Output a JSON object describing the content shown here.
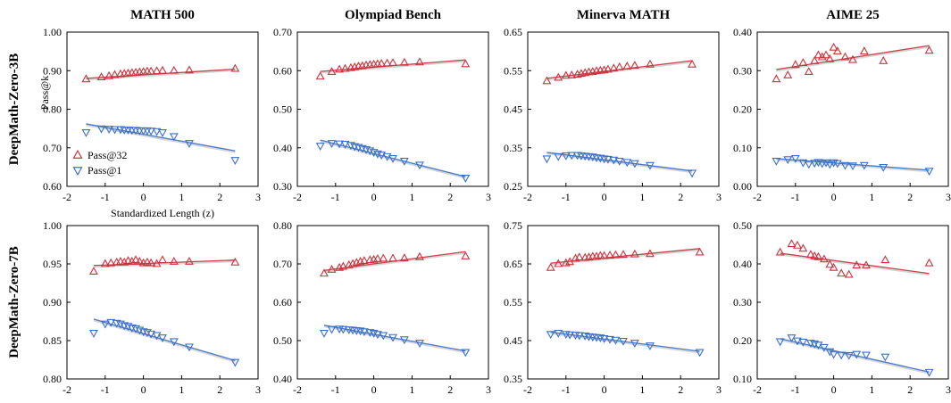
{
  "colors": {
    "pass32": "#d0303c",
    "pass1": "#3a6fc8",
    "pass32_fit": "#c8404a",
    "pass1_fit": "#4878c8"
  },
  "columns": [
    "MATH 500",
    "Olympiad Bench",
    "Minerva MATH",
    "AIME 25"
  ],
  "rows": [
    "DeepMath-Zero-3B",
    "DeepMath-Zero-7B"
  ],
  "legend": {
    "pass32": "Pass@32",
    "pass1": "Pass@1"
  },
  "ylabel": "Pass@k",
  "xlabel": "Standardized Length (z)",
  "chart_data": [
    {
      "type": "scatter",
      "row": "DeepMath-Zero-3B",
      "title": "MATH 500",
      "xlim": [
        -2,
        3
      ],
      "xticks": [
        "-2",
        "-1",
        "0",
        "1",
        "2",
        "3"
      ],
      "ylim": [
        0.6,
        1.0
      ],
      "yticks": [
        "0.60",
        "0.70",
        "0.80",
        "0.90",
        "1.00"
      ],
      "series": [
        {
          "name": "Pass@32",
          "marker": "triangle-up",
          "x": [
            -1.5,
            -1.1,
            -0.9,
            -0.75,
            -0.6,
            -0.5,
            -0.4,
            -0.3,
            -0.2,
            -0.1,
            0,
            0.1,
            0.2,
            0.35,
            0.5,
            0.8,
            1.2,
            2.4
          ],
          "y": [
            0.878,
            0.883,
            0.886,
            0.889,
            0.891,
            0.892,
            0.893,
            0.894,
            0.895,
            0.896,
            0.897,
            0.898,
            0.898,
            0.899,
            0.9,
            0.9,
            0.901,
            0.905
          ],
          "fit": [
            0.88,
            0.904
          ]
        },
        {
          "name": "Pass@1",
          "marker": "triangle-down",
          "x": [
            -1.5,
            -1.1,
            -0.9,
            -0.75,
            -0.6,
            -0.5,
            -0.4,
            -0.3,
            -0.2,
            -0.1,
            0,
            0.1,
            0.2,
            0.35,
            0.5,
            0.8,
            1.2,
            2.4
          ],
          "y": [
            0.74,
            0.75,
            0.749,
            0.748,
            0.748,
            0.747,
            0.747,
            0.746,
            0.746,
            0.745,
            0.745,
            0.745,
            0.744,
            0.743,
            0.74,
            0.73,
            0.712,
            0.668
          ],
          "fit": [
            0.762,
            0.692
          ]
        }
      ]
    },
    {
      "type": "scatter",
      "row": "DeepMath-Zero-3B",
      "title": "Olympiad Bench",
      "xlim": [
        -2,
        3
      ],
      "xticks": [
        "-2",
        "-1",
        "0",
        "1",
        "2",
        "3"
      ],
      "ylim": [
        0.3,
        0.7
      ],
      "yticks": [
        "0.30",
        "0.40",
        "0.50",
        "0.60",
        "0.70"
      ],
      "series": [
        {
          "name": "Pass@32",
          "marker": "triangle-up",
          "x": [
            -1.4,
            -1.1,
            -0.9,
            -0.75,
            -0.6,
            -0.5,
            -0.4,
            -0.3,
            -0.2,
            -0.1,
            0,
            0.1,
            0.2,
            0.35,
            0.5,
            0.8,
            1.2,
            2.4
          ],
          "y": [
            0.585,
            0.597,
            0.603,
            0.605,
            0.607,
            0.609,
            0.611,
            0.612,
            0.614,
            0.615,
            0.616,
            0.617,
            0.618,
            0.619,
            0.62,
            0.621,
            0.622,
            0.617
          ],
          "fit": [
            0.598,
            0.628
          ]
        },
        {
          "name": "Pass@1",
          "marker": "triangle-down",
          "x": [
            -1.4,
            -1.1,
            -0.9,
            -0.75,
            -0.6,
            -0.5,
            -0.4,
            -0.3,
            -0.2,
            -0.1,
            0,
            0.1,
            0.2,
            0.35,
            0.5,
            0.8,
            1.2,
            2.4
          ],
          "y": [
            0.405,
            0.412,
            0.411,
            0.41,
            0.407,
            0.404,
            0.402,
            0.399,
            0.396,
            0.393,
            0.389,
            0.385,
            0.382,
            0.378,
            0.373,
            0.366,
            0.356,
            0.322
          ],
          "fit": [
            0.42,
            0.325
          ]
        }
      ]
    },
    {
      "type": "scatter",
      "row": "DeepMath-Zero-3B",
      "title": "Minerva MATH",
      "xlim": [
        -2,
        3
      ],
      "xticks": [
        "-2",
        "-1",
        "0",
        "1",
        "2",
        "3"
      ],
      "ylim": [
        0.25,
        0.65
      ],
      "yticks": [
        "0.25",
        "0.35",
        "0.45",
        "0.55",
        "0.65"
      ],
      "series": [
        {
          "name": "Pass@32",
          "marker": "triangle-up",
          "x": [
            -1.5,
            -1.2,
            -1.0,
            -0.85,
            -0.7,
            -0.6,
            -0.5,
            -0.4,
            -0.3,
            -0.2,
            -0.1,
            0,
            0.1,
            0.25,
            0.4,
            0.6,
            0.8,
            1.2,
            2.3
          ],
          "y": [
            0.523,
            0.532,
            0.537,
            0.538,
            0.54,
            0.542,
            0.544,
            0.546,
            0.547,
            0.549,
            0.55,
            0.551,
            0.553,
            0.556,
            0.559,
            0.561,
            0.563,
            0.566,
            0.566
          ],
          "fit": [
            0.53,
            0.576
          ]
        },
        {
          "name": "Pass@1",
          "marker": "triangle-down",
          "x": [
            -1.5,
            -1.2,
            -1.0,
            -0.85,
            -0.7,
            -0.6,
            -0.5,
            -0.4,
            -0.3,
            -0.2,
            -0.1,
            0,
            0.1,
            0.25,
            0.4,
            0.6,
            0.8,
            1.2,
            2.3
          ],
          "y": [
            0.322,
            0.328,
            0.33,
            0.331,
            0.331,
            0.33,
            0.329,
            0.328,
            0.327,
            0.325,
            0.324,
            0.322,
            0.321,
            0.319,
            0.316,
            0.313,
            0.31,
            0.305,
            0.285
          ],
          "fit": [
            0.338,
            0.29
          ]
        }
      ]
    },
    {
      "type": "scatter",
      "row": "DeepMath-Zero-3B",
      "title": "AIME 25",
      "xlim": [
        -2,
        3
      ],
      "xticks": [
        "-2",
        "-1",
        "0",
        "1",
        "2",
        "3"
      ],
      "ylim": [
        0.0,
        0.4
      ],
      "yticks": [
        "0.00",
        "0.10",
        "0.20",
        "0.30",
        "0.40"
      ],
      "series": [
        {
          "name": "Pass@32",
          "marker": "triangle-up",
          "x": [
            -1.5,
            -1.2,
            -1.0,
            -0.8,
            -0.65,
            -0.5,
            -0.4,
            -0.3,
            -0.2,
            -0.1,
            0,
            0.1,
            0.3,
            0.5,
            0.8,
            1.3,
            2.5
          ],
          "y": [
            0.278,
            0.288,
            0.315,
            0.32,
            0.297,
            0.325,
            0.34,
            0.335,
            0.34,
            0.33,
            0.36,
            0.35,
            0.335,
            0.328,
            0.35,
            0.325,
            0.352
          ],
          "fit": [
            0.303,
            0.365
          ]
        },
        {
          "name": "Pass@1",
          "marker": "triangle-down",
          "x": [
            -1.5,
            -1.2,
            -1.0,
            -0.8,
            -0.65,
            -0.5,
            -0.4,
            -0.3,
            -0.2,
            -0.1,
            0,
            0.1,
            0.3,
            0.5,
            0.8,
            1.3,
            2.5
          ],
          "y": [
            0.066,
            0.07,
            0.073,
            0.062,
            0.058,
            0.061,
            0.063,
            0.06,
            0.062,
            0.058,
            0.062,
            0.06,
            0.055,
            0.054,
            0.055,
            0.05,
            0.04
          ],
          "fit": [
            0.072,
            0.042
          ]
        }
      ]
    },
    {
      "type": "scatter",
      "row": "DeepMath-Zero-7B",
      "title": "MATH 500",
      "xlim": [
        -2,
        3
      ],
      "xticks": [
        "-2",
        "-1",
        "0",
        "1",
        "2",
        "3"
      ],
      "ylim": [
        0.8,
        1.0
      ],
      "yticks": [
        "0.80",
        "0.85",
        "0.90",
        "0.95",
        "1.00"
      ],
      "series": [
        {
          "name": "Pass@32",
          "marker": "triangle-up",
          "x": [
            -1.3,
            -1.0,
            -0.85,
            -0.7,
            -0.6,
            -0.5,
            -0.4,
            -0.3,
            -0.2,
            -0.1,
            0,
            0.1,
            0.2,
            0.35,
            0.5,
            0.8,
            1.2,
            2.4
          ],
          "y": [
            0.94,
            0.95,
            0.951,
            0.952,
            0.953,
            0.952,
            0.954,
            0.953,
            0.955,
            0.953,
            0.951,
            0.952,
            0.951,
            0.95,
            0.955,
            0.953,
            0.953,
            0.952
          ],
          "fit": [
            0.948,
            0.955
          ]
        },
        {
          "name": "Pass@1",
          "marker": "triangle-down",
          "x": [
            -1.3,
            -1.0,
            -0.85,
            -0.7,
            -0.6,
            -0.5,
            -0.4,
            -0.3,
            -0.2,
            -0.1,
            0,
            0.1,
            0.2,
            0.35,
            0.5,
            0.8,
            1.2,
            2.4
          ],
          "y": [
            0.86,
            0.872,
            0.874,
            0.873,
            0.872,
            0.87,
            0.869,
            0.867,
            0.866,
            0.864,
            0.862,
            0.861,
            0.859,
            0.857,
            0.854,
            0.849,
            0.842,
            0.822
          ],
          "fit": [
            0.878,
            0.824
          ]
        }
      ]
    },
    {
      "type": "scatter",
      "row": "DeepMath-Zero-7B",
      "title": "Olympiad Bench",
      "xlim": [
        -2,
        3
      ],
      "xticks": [
        "-2",
        "-1",
        "0",
        "1",
        "2",
        "3"
      ],
      "ylim": [
        0.4,
        0.8
      ],
      "yticks": [
        "0.40",
        "0.50",
        "0.60",
        "0.70",
        "0.80"
      ],
      "series": [
        {
          "name": "Pass@32",
          "marker": "triangle-up",
          "x": [
            -1.3,
            -1.1,
            -0.9,
            -0.8,
            -0.65,
            -0.55,
            -0.45,
            -0.35,
            -0.25,
            -0.1,
            0,
            0.1,
            0.25,
            0.5,
            0.8,
            1.2,
            2.4
          ],
          "y": [
            0.675,
            0.685,
            0.69,
            0.693,
            0.697,
            0.7,
            0.703,
            0.706,
            0.708,
            0.71,
            0.711,
            0.713,
            0.714,
            0.714,
            0.715,
            0.718,
            0.72
          ],
          "fit": [
            0.683,
            0.732
          ]
        },
        {
          "name": "Pass@1",
          "marker": "triangle-down",
          "x": [
            -1.3,
            -1.1,
            -0.9,
            -0.8,
            -0.65,
            -0.55,
            -0.45,
            -0.35,
            -0.25,
            -0.1,
            0,
            0.1,
            0.25,
            0.5,
            0.8,
            1.2,
            2.4
          ],
          "y": [
            0.52,
            0.53,
            0.531,
            0.53,
            0.529,
            0.528,
            0.527,
            0.526,
            0.524,
            0.522,
            0.52,
            0.517,
            0.514,
            0.509,
            0.503,
            0.494,
            0.47
          ],
          "fit": [
            0.54,
            0.473
          ]
        }
      ]
    },
    {
      "type": "scatter",
      "row": "DeepMath-Zero-7B",
      "title": "Minerva MATH",
      "xlim": [
        -2,
        3
      ],
      "xticks": [
        "-2",
        "-1",
        "0",
        "1",
        "2",
        "3"
      ],
      "ylim": [
        0.35,
        0.75
      ],
      "yticks": [
        "0.35",
        "0.45",
        "0.55",
        "0.65",
        "0.75"
      ],
      "series": [
        {
          "name": "Pass@32",
          "marker": "triangle-up",
          "x": [
            -1.4,
            -1.2,
            -1.0,
            -0.9,
            -0.75,
            -0.65,
            -0.5,
            -0.4,
            -0.3,
            -0.2,
            -0.1,
            0,
            0.15,
            0.3,
            0.5,
            0.8,
            1.2,
            2.5
          ],
          "y": [
            0.64,
            0.65,
            0.652,
            0.655,
            0.664,
            0.667,
            0.666,
            0.667,
            0.669,
            0.669,
            0.671,
            0.671,
            0.672,
            0.673,
            0.674,
            0.675,
            0.676,
            0.68
          ],
          "fit": [
            0.652,
            0.69
          ]
        },
        {
          "name": "Pass@1",
          "marker": "triangle-down",
          "x": [
            -1.4,
            -1.2,
            -1.0,
            -0.9,
            -0.75,
            -0.65,
            -0.5,
            -0.4,
            -0.3,
            -0.2,
            -0.1,
            0,
            0.15,
            0.3,
            0.5,
            0.8,
            1.2,
            2.5
          ],
          "y": [
            0.467,
            0.47,
            0.467,
            0.466,
            0.465,
            0.464,
            0.463,
            0.461,
            0.46,
            0.459,
            0.458,
            0.456,
            0.454,
            0.452,
            0.449,
            0.444,
            0.437,
            0.42
          ],
          "fit": [
            0.472,
            0.422
          ]
        }
      ]
    },
    {
      "type": "scatter",
      "row": "DeepMath-Zero-7B",
      "title": "AIME 25",
      "xlim": [
        -2,
        3
      ],
      "xticks": [
        "-2",
        "-1",
        "0",
        "1",
        "2",
        "3"
      ],
      "ylim": [
        0.1,
        0.5
      ],
      "yticks": [
        "0.10",
        "0.20",
        "0.30",
        "0.40",
        "0.50"
      ],
      "series": [
        {
          "name": "Pass@32",
          "marker": "triangle-up",
          "x": [
            -1.4,
            -1.1,
            -0.95,
            -0.8,
            -0.6,
            -0.5,
            -0.4,
            -0.25,
            -0.1,
            0,
            0.2,
            0.4,
            0.6,
            0.85,
            1.35,
            2.5
          ],
          "y": [
            0.43,
            0.452,
            0.448,
            0.44,
            0.424,
            0.42,
            0.418,
            0.412,
            0.398,
            0.39,
            0.375,
            0.372,
            0.396,
            0.396,
            0.41,
            0.402
          ],
          "fit": [
            0.428,
            0.375
          ]
        },
        {
          "name": "Pass@1",
          "marker": "triangle-down",
          "x": [
            -1.4,
            -1.1,
            -0.95,
            -0.8,
            -0.6,
            -0.5,
            -0.4,
            -0.25,
            -0.1,
            0,
            0.2,
            0.4,
            0.6,
            0.85,
            1.35,
            2.5
          ],
          "y": [
            0.198,
            0.208,
            0.2,
            0.197,
            0.194,
            0.192,
            0.189,
            0.183,
            0.172,
            0.165,
            0.163,
            0.162,
            0.165,
            0.163,
            0.158,
            0.118
          ],
          "fit": [
            0.205,
            0.118
          ]
        }
      ]
    }
  ]
}
